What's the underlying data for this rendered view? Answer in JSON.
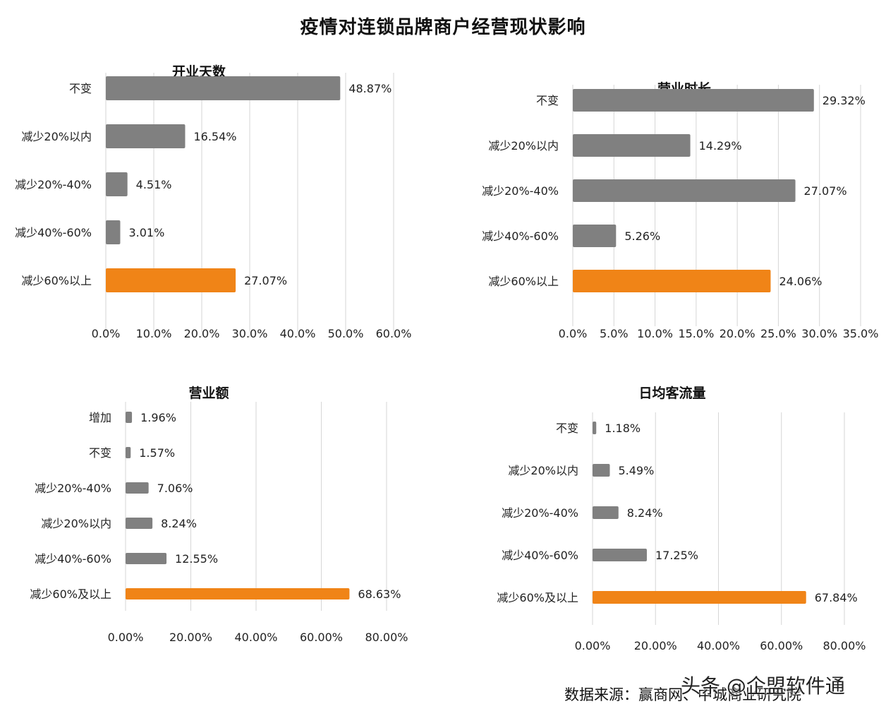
{
  "title": "疫情对连锁品牌商户经营现状影响",
  "source": "数据来源：赢商网、中城商业研究院",
  "watermark": "头条 @企盟软件通",
  "colors": {
    "gray": "#808080",
    "orange": "#f08417"
  },
  "chart_data": [
    {
      "type": "bar",
      "title": "开业天数",
      "categories": [
        "不变",
        "减少20%以内",
        "减少20%-40%",
        "减少40%-60%",
        "减少60%以上"
      ],
      "values": [
        48.87,
        16.54,
        4.51,
        3.01,
        27.07
      ],
      "value_labels": [
        "48.87%",
        "16.54%",
        "4.51%",
        "3.01%",
        "27.07%"
      ],
      "bar_colors": [
        "gray",
        "gray",
        "gray",
        "gray",
        "orange"
      ],
      "xlim": [
        0,
        60
      ],
      "xticks": [
        0,
        10,
        20,
        30,
        40,
        50,
        60
      ],
      "xtick_labels": [
        "0.0%",
        "10.0%",
        "20.0%",
        "30.0%",
        "40.0%",
        "50.0%",
        "60.0%"
      ],
      "grid": true
    },
    {
      "type": "bar",
      "title": "营业时长",
      "categories": [
        "不变",
        "减少20%以内",
        "减少20%-40%",
        "减少40%-60%",
        "减少60%以上"
      ],
      "values": [
        29.32,
        14.29,
        27.07,
        5.26,
        24.06
      ],
      "value_labels": [
        "29.32%",
        "14.29%",
        "27.07%",
        "5.26%",
        "24.06%"
      ],
      "bar_colors": [
        "gray",
        "gray",
        "gray",
        "gray",
        "orange"
      ],
      "xlim": [
        0,
        35
      ],
      "xticks": [
        0,
        5,
        10,
        15,
        20,
        25,
        30,
        35
      ],
      "xtick_labels": [
        "0.0%",
        "5.0%",
        "10.0%",
        "15.0%",
        "20.0%",
        "25.0%",
        "30.0%",
        "35.0%"
      ],
      "grid": true
    },
    {
      "type": "bar",
      "title": "营业额",
      "categories": [
        "增加",
        "不变",
        "减少20%-40%",
        "减少20%以内",
        "减少40%-60%",
        "减少60%及以上"
      ],
      "values": [
        1.96,
        1.57,
        7.06,
        8.24,
        12.55,
        68.63
      ],
      "value_labels": [
        "1.96%",
        "1.57%",
        "7.06%",
        "8.24%",
        "12.55%",
        "68.63%"
      ],
      "bar_colors": [
        "gray",
        "gray",
        "gray",
        "gray",
        "gray",
        "orange"
      ],
      "xlim": [
        0,
        80
      ],
      "xticks": [
        0,
        20,
        40,
        60,
        80
      ],
      "xtick_labels": [
        "0.00%",
        "20.00%",
        "40.00%",
        "60.00%",
        "80.00%"
      ],
      "grid": true
    },
    {
      "type": "bar",
      "title": "日均客流量",
      "categories": [
        "不变",
        "减少20%以内",
        "减少20%-40%",
        "减少40%-60%",
        "减少60%及以上"
      ],
      "values": [
        1.18,
        5.49,
        8.24,
        17.25,
        67.84
      ],
      "value_labels": [
        "1.18%",
        "5.49%",
        "8.24%",
        "17.25%",
        "67.84%"
      ],
      "bar_colors": [
        "gray",
        "gray",
        "gray",
        "gray",
        "orange"
      ],
      "xlim": [
        0,
        80
      ],
      "xticks": [
        0,
        20,
        40,
        60,
        80
      ],
      "xtick_labels": [
        "0.00%",
        "20.00%",
        "40.00%",
        "60.00%",
        "80.00%"
      ],
      "grid": true
    }
  ]
}
